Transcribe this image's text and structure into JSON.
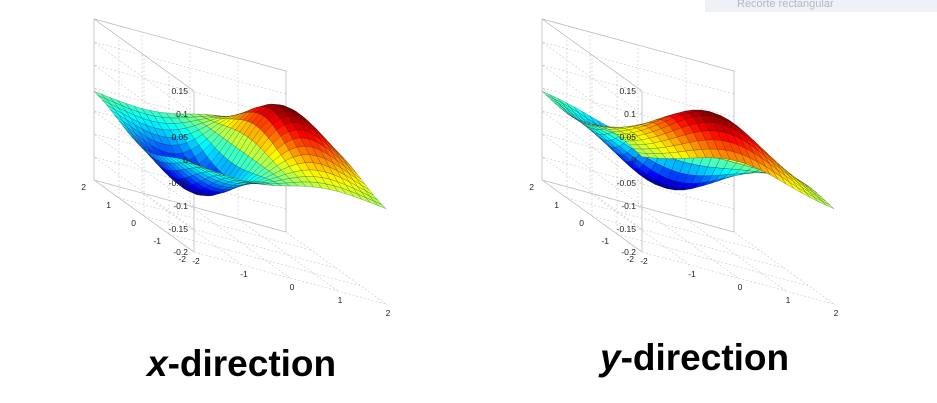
{
  "app": {
    "tooltip_label": "Recorte rectangular"
  },
  "captions": [
    {
      "var": "x",
      "rest": "-direction"
    },
    {
      "var": "y",
      "rest": "-direction"
    }
  ],
  "chart_data": [
    {
      "type": "surface",
      "title": "",
      "function": "derivative of 2D Gaussian along x",
      "x_range": [
        -2,
        2
      ],
      "y_range": [
        -2,
        2
      ],
      "zlim": [
        -0.2,
        0.15
      ],
      "z_ticks": [
        "0.15",
        "0.1",
        "0.05",
        "0",
        "-0.05",
        "-0.1",
        "-0.15",
        "-0.2"
      ],
      "x_ticks": [
        "-2",
        "-1",
        "0",
        "1",
        "2"
      ],
      "y_ticks": [
        "2",
        "1",
        "0",
        "-1",
        "-2"
      ],
      "peak_value": 0.12,
      "trough_value": -0.12,
      "grid": true,
      "colormap": "jet"
    },
    {
      "type": "surface",
      "title": "",
      "function": "derivative of 2D Gaussian along y",
      "x_range": [
        -2,
        2
      ],
      "y_range": [
        -2,
        2
      ],
      "zlim": [
        -0.2,
        0.15
      ],
      "z_ticks": [
        "0.15",
        "0.1",
        "0.05",
        "0",
        "-0.05",
        "-0.1",
        "-0.15",
        "-0.2"
      ],
      "x_ticks": [
        "-2",
        "-1",
        "0",
        "1",
        "2"
      ],
      "y_ticks": [
        "2",
        "1",
        "0",
        "-1",
        "-2"
      ],
      "peak_value": 0.12,
      "trough_value": -0.12,
      "grid": true,
      "colormap": "jet"
    }
  ]
}
